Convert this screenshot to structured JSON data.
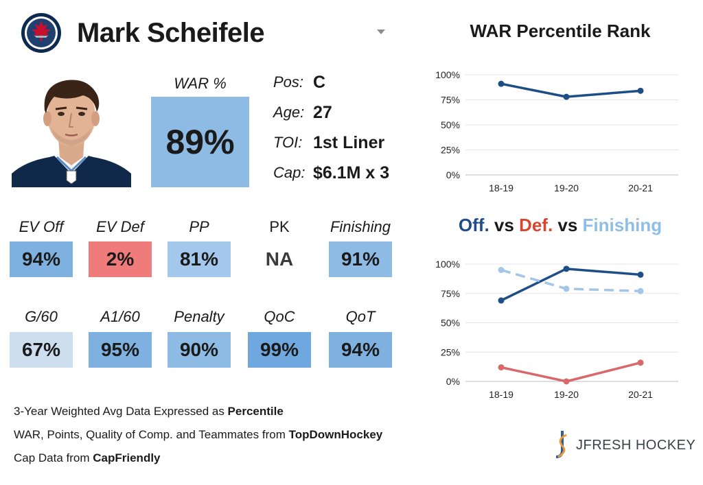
{
  "player": {
    "name": "Mark Scheifele",
    "team_logo": "winnipeg-jets-logo"
  },
  "war": {
    "label": "WAR %",
    "value": "89%",
    "color": "#8dbbe3"
  },
  "info": [
    {
      "key": "Pos:",
      "value": "C"
    },
    {
      "key": "Age:",
      "value": "27"
    },
    {
      "key": "TOI:",
      "value": "1st Liner"
    },
    {
      "key": "Cap:",
      "value": "$6.1M x 3"
    }
  ],
  "stats_row1": [
    {
      "label": "EV Off",
      "value": "94%",
      "color": "#7eb1e0"
    },
    {
      "label": "EV Def",
      "value": "2%",
      "color": "#f07b7b"
    },
    {
      "label": "PP",
      "value": "81%",
      "color": "#a3c8eb"
    },
    {
      "label": "PK",
      "value": "NA",
      "color": "#ffffff"
    },
    {
      "label": "Finishing",
      "value": "91%",
      "color": "#8dbbe3"
    }
  ],
  "stats_row2": [
    {
      "label": "G/60",
      "value": "67%",
      "color": "#cddfef"
    },
    {
      "label": "A1/60",
      "value": "95%",
      "color": "#7eb1e0"
    },
    {
      "label": "Penalty",
      "value": "90%",
      "color": "#8dbbe3"
    },
    {
      "label": "QoC",
      "value": "99%",
      "color": "#6fa8de"
    },
    {
      "label": "QoT",
      "value": "94%",
      "color": "#7eb1e0"
    }
  ],
  "footer": {
    "line1_prefix": "3-Year Weighted Avg Data Expressed as ",
    "line1_bold": "Percentile",
    "line2_prefix": "WAR, Points, Quality of Comp. and Teammates from ",
    "line2_bold": "TopDownHockey",
    "line3_prefix": "Cap Data from ",
    "line3_bold": "CapFriendly"
  },
  "brand": {
    "text": "JFRESH HOCKEY"
  },
  "chart_titles": {
    "chart2_part1": "Off.",
    "chart2_part2": " vs ",
    "chart2_part3": "Def.",
    "chart2_part4": " vs ",
    "chart2_part5": "Finishing"
  },
  "chart_data": [
    {
      "type": "line",
      "title": "WAR Percentile Rank",
      "categories": [
        "18-19",
        "19-20",
        "20-21"
      ],
      "y_ticks": [
        "0%",
        "25%",
        "50%",
        "75%",
        "100%"
      ],
      "ylim": [
        0,
        100
      ],
      "grid": true,
      "series": [
        {
          "values": [
            91,
            78,
            84
          ],
          "color": "#1f4e87",
          "dashed": false
        }
      ]
    },
    {
      "type": "line",
      "title": "Off. vs Def. vs Finishing",
      "categories": [
        "18-19",
        "19-20",
        "20-21"
      ],
      "y_ticks": [
        "0%",
        "25%",
        "50%",
        "75%",
        "100%"
      ],
      "ylim": [
        0,
        100
      ],
      "grid": true,
      "series": [
        {
          "values": [
            69,
            96,
            91
          ],
          "color": "#1f4e87",
          "dashed": false
        },
        {
          "values": [
            12,
            0,
            16
          ],
          "color": "#d9686a",
          "dashed": false
        },
        {
          "values": [
            95,
            79,
            77
          ],
          "color": "#a3c6e6",
          "dashed": true
        }
      ]
    }
  ],
  "colors": {
    "off": "#1f4e87",
    "def": "#d9452e",
    "finishing": "#8ebee6"
  }
}
